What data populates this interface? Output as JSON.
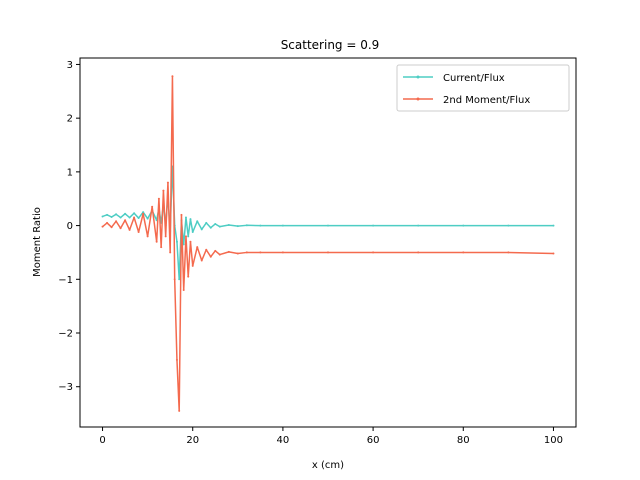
{
  "chart_data": {
    "type": "line",
    "title": "Scattering = 0.9",
    "xlabel": "x (cm)",
    "ylabel": "Moment Ratio",
    "xlim": [
      -5,
      105
    ],
    "ylim": [
      -3.75,
      3.12
    ],
    "xticks": [
      0,
      20,
      40,
      60,
      80,
      100
    ],
    "yticks": [
      -3,
      -2,
      -1,
      0,
      1,
      2,
      3
    ],
    "grid": false,
    "legend_position": "top-right",
    "series": [
      {
        "name": "Current/Flux",
        "color": "#4ecdc4",
        "x": [
          0,
          1,
          2,
          3,
          4,
          5,
          6,
          7,
          8,
          9,
          10,
          11,
          12,
          12.5,
          13,
          13.5,
          14,
          14.5,
          15,
          15.5,
          16,
          16.5,
          17,
          17.5,
          18,
          18.5,
          19,
          19.5,
          20,
          21,
          22,
          23,
          24,
          25,
          26,
          28,
          30,
          32,
          35,
          40,
          50,
          60,
          70,
          80,
          90,
          100
        ],
        "y": [
          0.17,
          0.2,
          0.16,
          0.21,
          0.15,
          0.22,
          0.15,
          0.23,
          0.14,
          0.25,
          0.13,
          0.28,
          0.1,
          0.32,
          0.05,
          0.4,
          0.0,
          0.55,
          -0.1,
          1.1,
          0.0,
          -0.3,
          -1.0,
          0.1,
          -0.35,
          0.15,
          -0.2,
          0.12,
          -0.12,
          0.08,
          -0.07,
          0.05,
          -0.04,
          0.03,
          -0.02,
          0.01,
          -0.01,
          0.005,
          0.0,
          0.0,
          0.0,
          0.0,
          0.0,
          0.0,
          0.0,
          0.0
        ]
      },
      {
        "name": "2nd Moment/Flux",
        "color": "#f46a4e",
        "x": [
          0,
          1,
          2,
          3,
          4,
          5,
          6,
          7,
          8,
          9,
          10,
          11,
          12,
          12.5,
          13,
          13.5,
          14,
          14.5,
          15,
          15.5,
          16,
          16.5,
          17,
          17.5,
          18,
          18.5,
          19,
          19.5,
          20,
          21,
          22,
          23,
          24,
          25,
          26,
          28,
          30,
          32,
          35,
          40,
          50,
          60,
          70,
          80,
          90,
          100
        ],
        "y": [
          -0.02,
          0.05,
          -0.03,
          0.08,
          -0.05,
          0.1,
          -0.08,
          0.15,
          -0.12,
          0.22,
          -0.2,
          0.35,
          -0.3,
          0.5,
          -0.4,
          0.65,
          -0.2,
          0.8,
          -0.5,
          2.78,
          -1.0,
          -2.5,
          -3.45,
          0.2,
          -1.2,
          -0.2,
          -0.95,
          -0.3,
          -0.75,
          -0.4,
          -0.65,
          -0.45,
          -0.58,
          -0.47,
          -0.54,
          -0.49,
          -0.52,
          -0.5,
          -0.5,
          -0.5,
          -0.5,
          -0.5,
          -0.5,
          -0.5,
          -0.5,
          -0.52
        ]
      }
    ]
  }
}
